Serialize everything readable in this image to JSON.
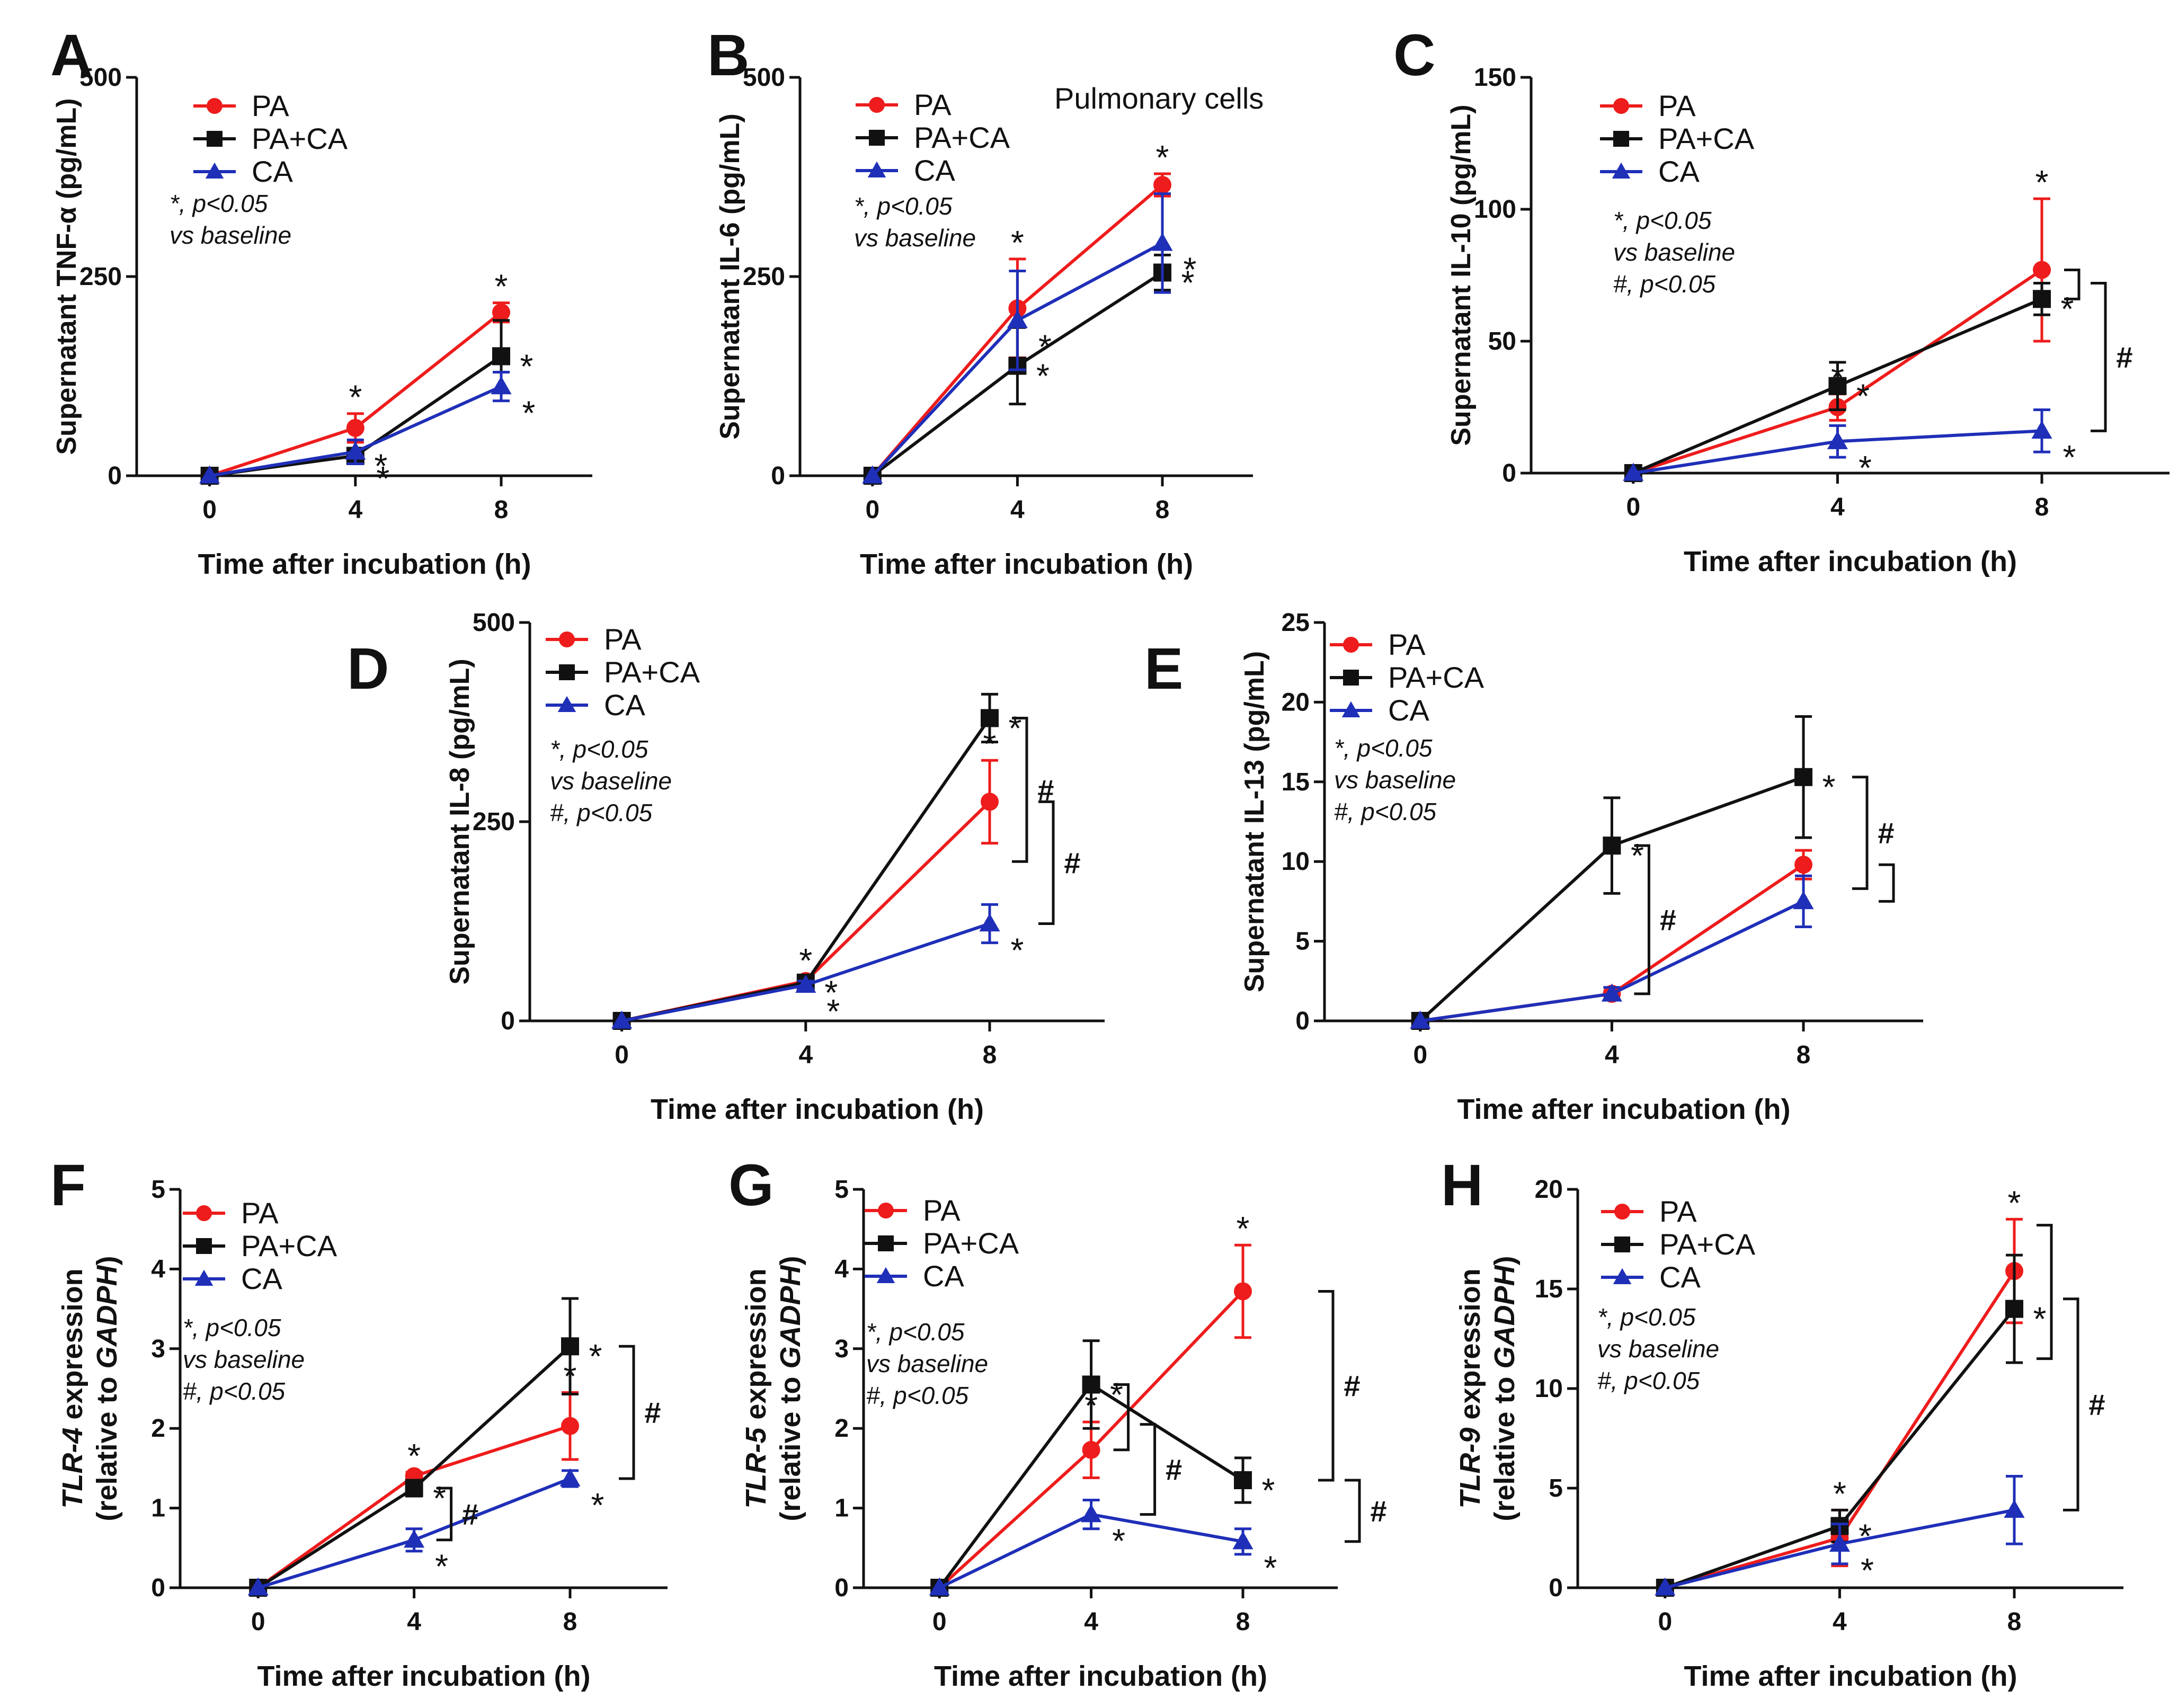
{
  "colors": {
    "PA": "#ee1c1c",
    "PA+CA": "#111111",
    "CA": "#1f2fb8"
  },
  "legend_labels": [
    "PA",
    "PA+CA",
    "CA"
  ],
  "chart_data": [
    {
      "type": "line",
      "letter": "A",
      "extra": "",
      "ylabel": [
        "Supernatant TNF-α (pg/mL)"
      ],
      "ylabel_italic": [],
      "xlabel": "Time after incubation (h)",
      "x": [
        0,
        4,
        8
      ],
      "ylim": [
        0,
        500
      ],
      "yticks": [
        0,
        250,
        500
      ],
      "note": [
        "*, p<0.05",
        "vs baseline"
      ],
      "series": [
        {
          "name": "PA",
          "values": [
            0,
            60,
            205
          ],
          "err": [
            0,
            18,
            12
          ],
          "stars": [
            "",
            "*",
            "*"
          ]
        },
        {
          "name": "PA+CA",
          "values": [
            0,
            25,
            150
          ],
          "err": [
            0,
            8,
            45
          ],
          "stars": [
            "",
            "*",
            "*"
          ]
        },
        {
          "name": "CA",
          "values": [
            0,
            30,
            112
          ],
          "err": [
            0,
            15,
            18
          ],
          "stars": [
            "",
            "*",
            "*"
          ]
        }
      ],
      "brackets": []
    },
    {
      "type": "line",
      "letter": "B",
      "extra": "Pulmonary cells",
      "ylabel": [
        "Supernatant IL-6 (pg/mL)"
      ],
      "ylabel_italic": [],
      "xlabel": "Time after incubation (h)",
      "x": [
        0,
        4,
        8
      ],
      "ylim": [
        0,
        500
      ],
      "yticks": [
        0,
        250,
        500
      ],
      "note": [
        "*, p<0.05",
        "vs baseline"
      ],
      "series": [
        {
          "name": "PA",
          "values": [
            0,
            210,
            365
          ],
          "err": [
            0,
            62,
            14
          ],
          "stars": [
            "",
            "*",
            "*"
          ]
        },
        {
          "name": "PA+CA",
          "values": [
            0,
            138,
            255
          ],
          "err": [
            0,
            48,
            22
          ],
          "stars": [
            "",
            "*",
            "*"
          ]
        },
        {
          "name": "CA",
          "values": [
            0,
            195,
            292
          ],
          "err": [
            0,
            62,
            62
          ],
          "stars": [
            "",
            "*",
            "*"
          ]
        }
      ],
      "brackets": []
    },
    {
      "type": "line",
      "letter": "C",
      "extra": "",
      "ylabel": [
        "Supernatant IL-10 (pg/mL)"
      ],
      "ylabel_italic": [],
      "xlabel": "Time after incubation (h)",
      "x": [
        0,
        4,
        8
      ],
      "ylim": [
        0,
        150
      ],
      "yticks": [
        0,
        50,
        100,
        150
      ],
      "note": [
        "*, p<0.05",
        "vs baseline",
        "#, p<0.05"
      ],
      "series": [
        {
          "name": "PA",
          "values": [
            0,
            25,
            77
          ],
          "err": [
            0,
            5,
            27
          ],
          "stars": [
            "",
            "*",
            "*"
          ]
        },
        {
          "name": "PA+CA",
          "values": [
            0,
            33,
            66
          ],
          "err": [
            0,
            9,
            6
          ],
          "stars": [
            "",
            "*",
            "*"
          ]
        },
        {
          "name": "CA",
          "values": [
            0,
            12,
            16
          ],
          "err": [
            0,
            6,
            8
          ],
          "stars": [
            "",
            "*",
            "*"
          ]
        }
      ],
      "brackets": [
        {
          "x": 8,
          "from": 77,
          "to": 66,
          "label": ""
        },
        {
          "x": 8,
          "from": 72,
          "to": 16,
          "label": "#"
        }
      ]
    },
    {
      "type": "line",
      "letter": "D",
      "extra": "",
      "ylabel": [
        "Supernatant IL-8 (pg/mL)"
      ],
      "ylabel_italic": [],
      "xlabel": "Time after incubation (h)",
      "x": [
        0,
        4,
        8
      ],
      "ylim": [
        0,
        500
      ],
      "yticks": [
        0,
        250,
        500
      ],
      "note": [
        "*, p<0.05",
        "vs baseline",
        "#, p<0.05"
      ],
      "series": [
        {
          "name": "PA",
          "values": [
            0,
            50,
            275
          ],
          "err": [
            0,
            5,
            52
          ],
          "stars": [
            "",
            "*",
            "*"
          ]
        },
        {
          "name": "PA+CA",
          "values": [
            0,
            48,
            380
          ],
          "err": [
            0,
            5,
            30
          ],
          "stars": [
            "",
            "*",
            "*"
          ]
        },
        {
          "name": "CA",
          "values": [
            0,
            45,
            122
          ],
          "err": [
            0,
            5,
            24
          ],
          "stars": [
            "",
            "*",
            "*"
          ]
        }
      ],
      "brackets": [
        {
          "x": 8,
          "from": 380,
          "to": 200,
          "label": "#"
        },
        {
          "x": 8,
          "from": 275,
          "to": 122,
          "label": "#"
        }
      ]
    },
    {
      "type": "line",
      "letter": "E",
      "extra": "",
      "ylabel": [
        "Supernatant IL-13 (pg/mL)"
      ],
      "ylabel_italic": [],
      "xlabel": "Time after incubation (h)",
      "x": [
        0,
        4,
        8
      ],
      "ylim": [
        0,
        25
      ],
      "yticks": [
        0,
        5,
        10,
        15,
        20,
        25
      ],
      "note": [
        "*, p<0.05",
        "vs baseline",
        "#, p<0.05"
      ],
      "series": [
        {
          "name": "PA",
          "values": [
            0,
            1.7,
            9.8
          ],
          "err": [
            0,
            0.4,
            0.9
          ],
          "stars": [
            "",
            "",
            ""
          ]
        },
        {
          "name": "PA+CA",
          "values": [
            0,
            11,
            15.3
          ],
          "err": [
            0,
            3,
            3.8
          ],
          "stars": [
            "",
            "*",
            "*"
          ]
        },
        {
          "name": "CA",
          "values": [
            0,
            1.7,
            7.5
          ],
          "err": [
            0,
            0.4,
            1.6
          ],
          "stars": [
            "",
            "",
            ""
          ]
        }
      ],
      "brackets": [
        {
          "x": 4,
          "from": 11,
          "to": 1.7,
          "label": "#"
        },
        {
          "x": 8,
          "from": 15.3,
          "to": 8.3,
          "label": "#"
        },
        {
          "x": 8,
          "from": 9.8,
          "to": 7.5,
          "label": ""
        }
      ]
    },
    {
      "type": "line",
      "letter": "F",
      "extra": "",
      "ylabel": [
        " expression",
        "(relative to ",
        ")"
      ],
      "ylabel_italic": [
        "TLR-4",
        "GADPH"
      ],
      "xlabel": "Time after incubation (h)",
      "x": [
        0,
        4,
        8
      ],
      "ylim": [
        0,
        5
      ],
      "yticks": [
        0,
        1,
        2,
        3,
        4,
        5
      ],
      "note": [
        "*, p<0.05",
        "vs baseline",
        "#, p<0.05"
      ],
      "series": [
        {
          "name": "PA",
          "values": [
            0,
            1.4,
            2.03
          ],
          "err": [
            0,
            0.05,
            0.42
          ],
          "stars": [
            "",
            "*",
            "*"
          ]
        },
        {
          "name": "PA+CA",
          "values": [
            0,
            1.25,
            3.03
          ],
          "err": [
            0,
            0.1,
            0.6
          ],
          "stars": [
            "",
            "*",
            "*"
          ]
        },
        {
          "name": "CA",
          "values": [
            0,
            0.6,
            1.37
          ],
          "err": [
            0,
            0.14,
            0.1
          ],
          "stars": [
            "",
            "*",
            "*"
          ]
        }
      ],
      "brackets": [
        {
          "x": 4,
          "from": 1.25,
          "to": 0.6,
          "label": "#"
        },
        {
          "x": 8,
          "from": 3.03,
          "to": 1.37,
          "label": "#"
        }
      ]
    },
    {
      "type": "line",
      "letter": "G",
      "extra": "",
      "ylabel": [
        " expression",
        "(relative to ",
        ")"
      ],
      "ylabel_italic": [
        "TLR-5",
        "GADPH"
      ],
      "xlabel": "Time after incubation (h)",
      "x": [
        0,
        4,
        8
      ],
      "ylim": [
        0,
        5
      ],
      "yticks": [
        0,
        1,
        2,
        3,
        4,
        5
      ],
      "note": [
        "*, p<0.05",
        "vs baseline",
        "#, p<0.05"
      ],
      "series": [
        {
          "name": "PA",
          "values": [
            0,
            1.73,
            3.72
          ],
          "err": [
            0,
            0.35,
            0.58
          ],
          "stars": [
            "",
            "*",
            "*"
          ]
        },
        {
          "name": "PA+CA",
          "values": [
            0,
            2.55,
            1.35
          ],
          "err": [
            0,
            0.55,
            0.28
          ],
          "stars": [
            "",
            "*",
            "*"
          ]
        },
        {
          "name": "CA",
          "values": [
            0,
            0.92,
            0.58
          ],
          "err": [
            0,
            0.18,
            0.16
          ],
          "stars": [
            "",
            "*",
            "*"
          ]
        }
      ],
      "brackets": [
        {
          "x": 4,
          "from": 2.55,
          "to": 1.73,
          "label": ""
        },
        {
          "x": 4,
          "from": 2.05,
          "to": 0.92,
          "label": "#"
        },
        {
          "x": 8,
          "from": 3.72,
          "to": 1.35,
          "label": "#"
        },
        {
          "x": 8,
          "from": 1.35,
          "to": 0.58,
          "label": "#"
        }
      ]
    },
    {
      "type": "line",
      "letter": "H",
      "extra": "",
      "ylabel": [
        " expression",
        "(relative to ",
        ")"
      ],
      "ylabel_italic": [
        "TLR-9",
        "GADPH"
      ],
      "xlabel": "Time after incubation (h)",
      "x": [
        0,
        4,
        8
      ],
      "ylim": [
        0,
        20
      ],
      "yticks": [
        0,
        5,
        10,
        15,
        20
      ],
      "note": [
        "*, p<0.05",
        "vs baseline",
        "#, p<0.05"
      ],
      "series": [
        {
          "name": "PA",
          "values": [
            0,
            2.5,
            15.9
          ],
          "err": [
            0,
            1.4,
            2.6
          ],
          "stars": [
            "",
            "*",
            "*"
          ]
        },
        {
          "name": "PA+CA",
          "values": [
            0,
            3.1,
            14
          ],
          "err": [
            0,
            0.8,
            2.7
          ],
          "stars": [
            "",
            "*",
            "*"
          ]
        },
        {
          "name": "CA",
          "values": [
            0,
            2.2,
            3.9
          ],
          "err": [
            0,
            1,
            1.7
          ],
          "stars": [
            "",
            "*",
            ""
          ]
        }
      ],
      "brackets": [
        {
          "x": 8,
          "from": 18.2,
          "to": 11.5,
          "label": ""
        },
        {
          "x": 8,
          "from": 14.5,
          "to": 3.9,
          "label": "#"
        }
      ]
    }
  ]
}
